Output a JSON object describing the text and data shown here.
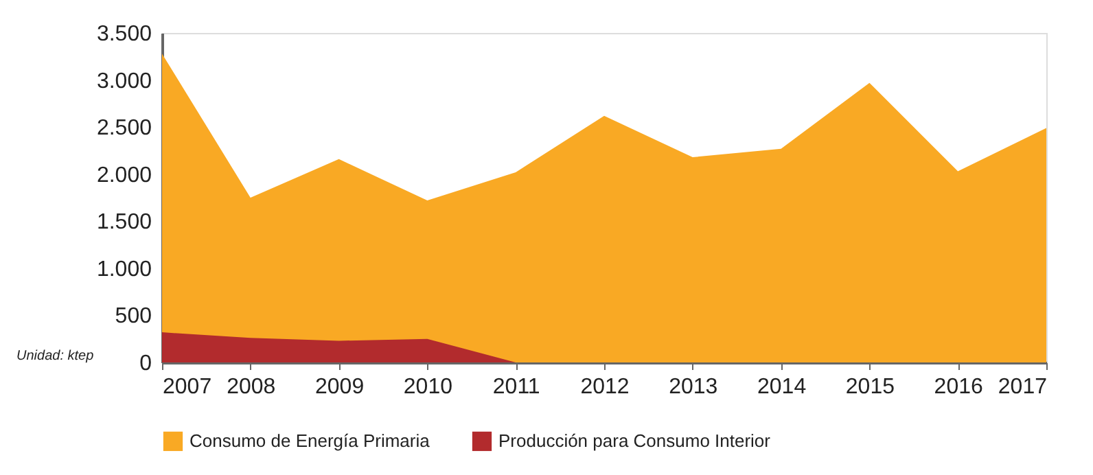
{
  "chart_data": {
    "type": "area",
    "x": [
      2007,
      2008,
      2009,
      2010,
      2011,
      2012,
      2013,
      2014,
      2015,
      2016,
      2017
    ],
    "series": [
      {
        "name": "Consumo de Energía Primaria",
        "color": "#f9a924",
        "values": [
          3280,
          1750,
          2160,
          1720,
          2020,
          2620,
          2180,
          2270,
          2970,
          2030,
          2490
        ]
      },
      {
        "name": "Producción para Consumo Interior",
        "color": "#b22b2d",
        "values": [
          320,
          260,
          230,
          250,
          0,
          null,
          null,
          null,
          null,
          null,
          null
        ]
      }
    ],
    "xlim": [
      2007,
      2017
    ],
    "xticks": [
      2007,
      2008,
      2009,
      2010,
      2011,
      2012,
      2013,
      2014,
      2015,
      2016,
      2017
    ],
    "ylim": [
      0,
      3500
    ],
    "yticks": [
      0,
      500,
      {
        "value": 1000,
        "label": "1.000"
      },
      {
        "value": 1500,
        "label": "1.500"
      },
      {
        "value": 2000,
        "label": "2.000"
      },
      {
        "value": 2500,
        "label": "2.500"
      },
      {
        "value": 3000,
        "label": "3.000"
      },
      {
        "value": 3500,
        "label": "3.500"
      }
    ],
    "annotations": [
      "Unidad: ktep"
    ],
    "grid": false,
    "legend": "bottom"
  }
}
